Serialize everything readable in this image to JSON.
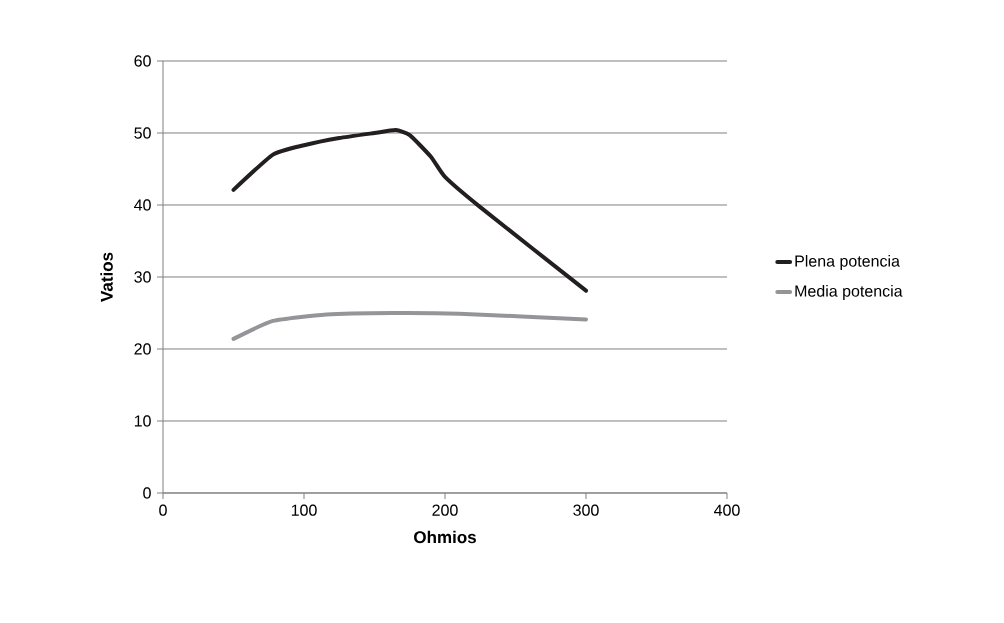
{
  "chart_data": {
    "type": "line",
    "xlabel": "Ohmios",
    "ylabel": "Vatios",
    "xlim": [
      0,
      400
    ],
    "xticks": [
      0,
      100,
      200,
      300,
      400
    ],
    "ylim": [
      0,
      60
    ],
    "yticks": [
      0,
      10,
      20,
      30,
      40,
      50,
      60
    ],
    "grid": "y",
    "legend": "right",
    "marker": "none",
    "line_style": "solid",
    "series": [
      {
        "name": "Plena potencia",
        "color": "#231f20",
        "x": [
          50,
          78,
          100,
          125,
          150,
          165,
          175,
          190,
          200,
          225,
          300
        ],
        "values": [
          42.1,
          47.0,
          48.3,
          49.3,
          50.0,
          50.4,
          49.7,
          46.7,
          43.9,
          39.7,
          28.1
        ]
      },
      {
        "name": "Media potencia",
        "color": "#939598",
        "x": [
          50,
          78,
          116,
          163,
          210,
          300
        ],
        "values": [
          21.4,
          23.9,
          24.8,
          25.0,
          24.9,
          24.1
        ]
      }
    ]
  }
}
